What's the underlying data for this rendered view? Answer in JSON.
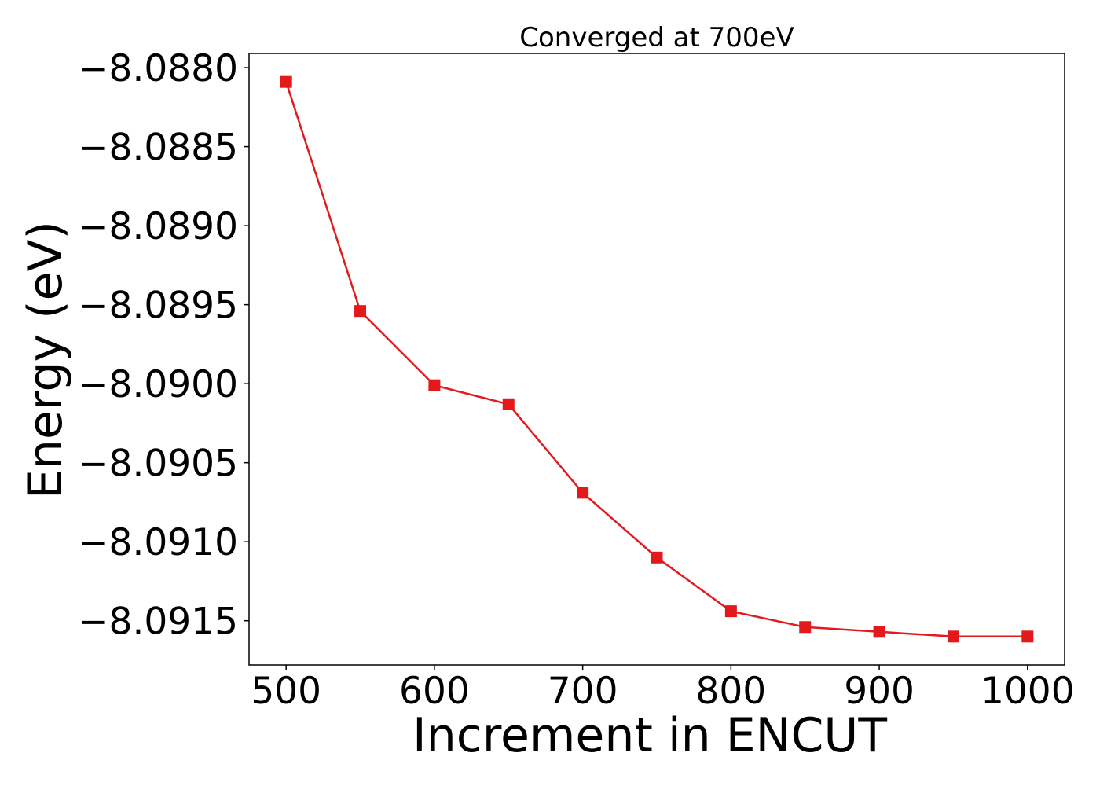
{
  "chart_data": {
    "type": "line",
    "title": "Converged at 700eV",
    "xlabel": "Increment in ENCUT",
    "ylabel": "Energy (eV)",
    "x": [
      500,
      550,
      600,
      650,
      700,
      750,
      800,
      850,
      900,
      950,
      1000
    ],
    "series": [
      {
        "values": [
          -8.08809,
          -8.08954,
          -8.09001,
          -8.09013,
          -8.09069,
          -8.0911,
          -8.09144,
          -8.09154,
          -8.09157,
          -8.0916,
          -8.0916
        ],
        "color": "#e31a1c",
        "marker": "square"
      }
    ],
    "xticks": [
      500,
      600,
      700,
      800,
      900,
      1000
    ],
    "xtick_labels": [
      "500",
      "600",
      "700",
      "800",
      "900",
      "1000"
    ],
    "yticks": [
      -8.088,
      -8.0885,
      -8.089,
      -8.0895,
      -8.09,
      -8.0905,
      -8.091,
      -8.0915
    ],
    "ytick_labels": [
      "−8.0880",
      "−8.0885",
      "−8.0890",
      "−8.0895",
      "−8.0900",
      "−8.0905",
      "−8.0910",
      "−8.0915"
    ],
    "xlim": [
      475,
      1025
    ],
    "ylim": [
      -8.09178,
      -8.08791
    ],
    "grid": false,
    "legend": "none"
  }
}
